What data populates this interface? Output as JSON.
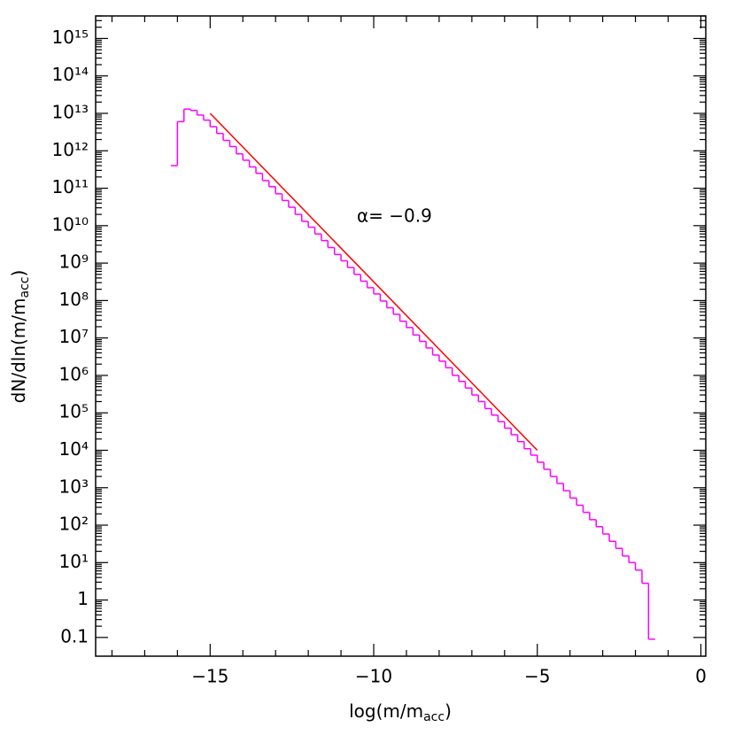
{
  "chart_data": {
    "type": "histogram",
    "x_label": [
      "log(m/m",
      "acc",
      ")"
    ],
    "y_label": [
      "dN/dln(m/m",
      "acc",
      ")"
    ],
    "bins": [
      -16.2,
      -16,
      -15.8,
      -15.6,
      -15.4,
      -15.2,
      -15,
      -14.8,
      -14.6,
      -14.4,
      -14.2,
      -14,
      -13.8,
      -13.6,
      -13.4,
      -13.2,
      -13,
      -12.8,
      -12.6,
      -12.4,
      -12.2,
      -12,
      -11.8,
      -11.6,
      -11.4,
      -11.2,
      -11,
      -10.8,
      -10.6,
      -10.4,
      -10.2,
      -10,
      -9.8,
      -9.6,
      -9.4,
      -9.2,
      -9,
      -8.8,
      -8.6,
      -8.4,
      -8.2,
      -8,
      -7.8,
      -7.6,
      -7.4,
      -7.2,
      -7,
      -6.8,
      -6.6,
      -6.4,
      -6.2,
      -6,
      -5.8,
      -5.6,
      -5.4,
      -5.2,
      -5,
      -4.8,
      -4.6,
      -4.4,
      -4.2,
      -4,
      -3.8,
      -3.6,
      -3.4,
      -3.2,
      -3,
      -2.8,
      -2.6,
      -2.4,
      -2.2,
      -2,
      -1.8,
      -1.6,
      -1.4
    ],
    "values": [
      400000000000.0,
      6000000000000.0,
      13000000000000.0,
      12000000000000.0,
      9000000000000.0,
      6600000000000.0,
      4400000000000.0,
      2900000000000.0,
      1900000000000.0,
      1300000000000.0,
      830000000000.0,
      560000000000.0,
      370000000000.0,
      250000000000.0,
      160000000000.0,
      110000000000.0,
      71000000000.0,
      47000000000.0,
      31000000000.0,
      20000000000.0,
      13000000000.0,
      9100000000.0,
      6000000000.0,
      4000000000.0,
      2600000000.0,
      1700000000.0,
      1150000000.0,
      760000000.0,
      500000000.0,
      330000000.0,
      220000000.0,
      150000000.0,
      97000000.0,
      64000000.0,
      43000000.0,
      28000000.0,
      19000000.0,
      12000000.0,
      8100000.0,
      5400000.0,
      3500000.0,
      2400000.0,
      1600000.0,
      1000000.0,
      690000.0,
      460000.0,
      300000.0,
      200000.0,
      130000.0,
      87000.0,
      58000.0,
      39000.0,
      26000.0,
      17000.0,
      11000.0,
      7400.0,
      4800.0,
      3100.0,
      2000.0,
      1300.0,
      830,
      530,
      340,
      220,
      140,
      91,
      58,
      37,
      24,
      15,
      10,
      6.3,
      2.8,
      0.09
    ],
    "color": "#ff00ff",
    "fit_line": {
      "x": [
        -15,
        -5
      ],
      "values": [
        10000000000000.0,
        10000.0
      ],
      "color": "#ff0000"
    },
    "annotation": "α=  −0.9",
    "annotation_color": "#ff0000",
    "log_y": true,
    "xlim": [
      -18.5,
      0.15
    ],
    "ylim": [
      0.0316,
      4000000000000000.0
    ],
    "xticks": [
      {
        "value": -15,
        "label": "−15"
      },
      {
        "value": -10,
        "label": "−10"
      },
      {
        "value": -5,
        "label": "−5"
      },
      0
    ],
    "yticks": [
      0.1,
      1,
      {
        "value": 10,
        "label": "10¹"
      },
      {
        "value": 100,
        "label": "10²"
      },
      {
        "value": 1000,
        "label": "10³"
      },
      {
        "value": 10000.0,
        "label": "10⁴"
      },
      {
        "value": 100000.0,
        "label": "10⁵"
      },
      {
        "value": 1000000.0,
        "label": "10⁶"
      },
      {
        "value": 10000000.0,
        "label": "10⁷"
      },
      {
        "value": 100000000.0,
        "label": "10⁸"
      },
      {
        "value": 1000000000.0,
        "label": "10⁹"
      },
      {
        "value": 10000000000.0,
        "label": "10¹⁰"
      },
      {
        "value": 100000000000.0,
        "label": "10¹¹"
      },
      {
        "value": 1000000000000.0,
        "label": "10¹²"
      },
      {
        "value": 10000000000000.0,
        "label": "10¹³"
      },
      {
        "value": 100000000000000.0,
        "label": "10¹⁴"
      },
      {
        "value": 1000000000000000.0,
        "label": "10¹⁵"
      }
    ]
  }
}
